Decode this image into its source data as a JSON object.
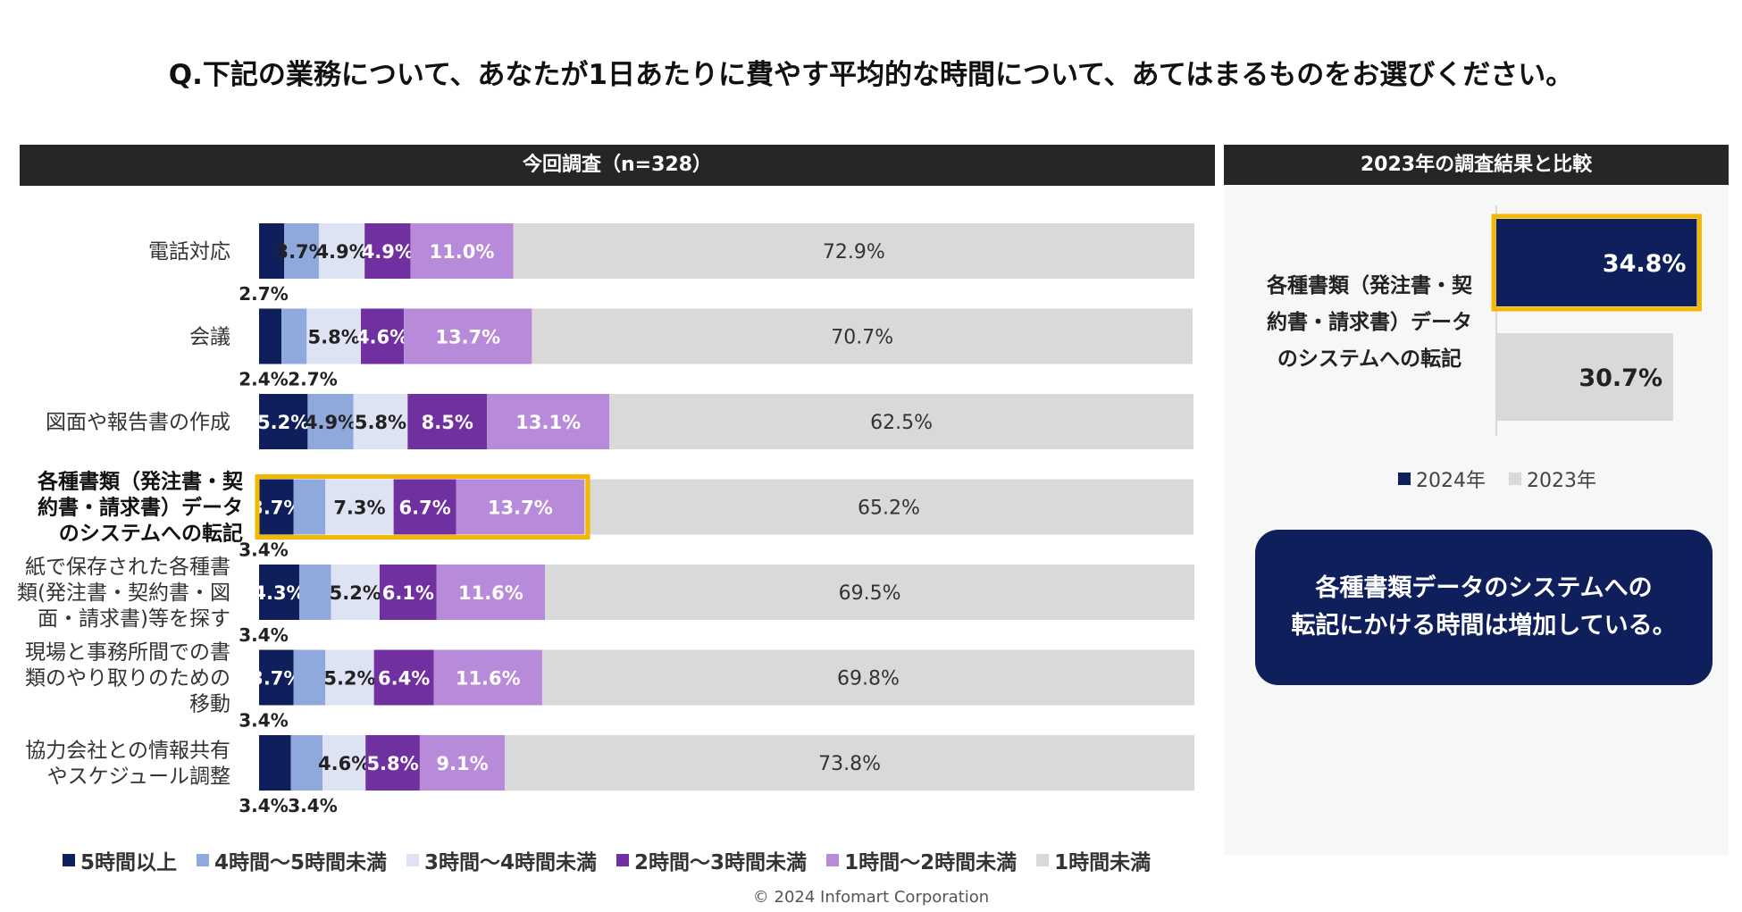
{
  "title": "Q.下記の業務について、あなたが1日あたりに費やす平均的な時間について、あてはまるものをお選びください。",
  "left_header": "今回調査（n=328）",
  "right_header": "2023年の調査結果と比較",
  "footer": "© 2024 Infomart Corporation",
  "callout": {
    "line1": "各種書類データのシステムへの",
    "line2": "転記にかける時間は増加している。"
  },
  "colors": {
    "c5": "#0f1f5c",
    "c4": "#8fa9dc",
    "c3": "#dde3f3",
    "c2": "#7130a0",
    "c1": "#b78bd9",
    "c0": "#d9d9d9",
    "highlight": "#f5b800"
  },
  "chart_data": [
    {
      "type": "bar",
      "orientation": "horizontal-stacked-100",
      "title": "今回調査（n=328）",
      "categories": [
        [
          "電話対応"
        ],
        [
          "会議"
        ],
        [
          "図面や報告書の作成"
        ],
        [
          "各種書類（発注書・契",
          "約書・請求書）データ",
          "のシステムへの転記"
        ],
        [
          "紙で保存された各種書",
          "類(発注書・契約書・図",
          "面・請求書)等を探す"
        ],
        [
          "現場と事務所間での書",
          "類のやり取りのための",
          "移動"
        ],
        [
          "協力会社との情報共有",
          "やスケジュール調整"
        ]
      ],
      "highlighted_category_index": 3,
      "series": [
        {
          "name": "5時間以上",
          "values": [
            2.7,
            2.4,
            5.2,
            3.7,
            4.3,
            3.7,
            3.4
          ]
        },
        {
          "name": "4時間～5時間未満",
          "values": [
            3.7,
            2.7,
            4.9,
            3.4,
            3.4,
            3.4,
            3.4
          ]
        },
        {
          "name": "3時間～4時間未満",
          "values": [
            4.9,
            5.8,
            5.8,
            7.3,
            5.2,
            5.2,
            4.6
          ]
        },
        {
          "name": "2時間～3時間未満",
          "values": [
            4.9,
            4.6,
            8.5,
            6.7,
            6.1,
            6.4,
            5.8
          ]
        },
        {
          "name": "1時間～2時間未満",
          "values": [
            11.0,
            13.7,
            13.1,
            13.7,
            11.6,
            11.6,
            9.1
          ]
        },
        {
          "name": "1時間未満",
          "values": [
            72.9,
            70.7,
            62.5,
            65.2,
            69.5,
            69.8,
            73.8
          ]
        }
      ],
      "xlim": [
        0,
        100
      ],
      "unit": "%"
    },
    {
      "type": "bar",
      "orientation": "horizontal",
      "title": "2023年の調査結果と比較",
      "category": [
        "各種書類（発注書・契",
        "約書・請求書）データ",
        "のシステムへの転記"
      ],
      "series": [
        {
          "name": "2024年",
          "value": 34.8
        },
        {
          "name": "2023年",
          "value": 30.7
        }
      ],
      "xlim": [
        0,
        40
      ],
      "unit": "%"
    }
  ]
}
